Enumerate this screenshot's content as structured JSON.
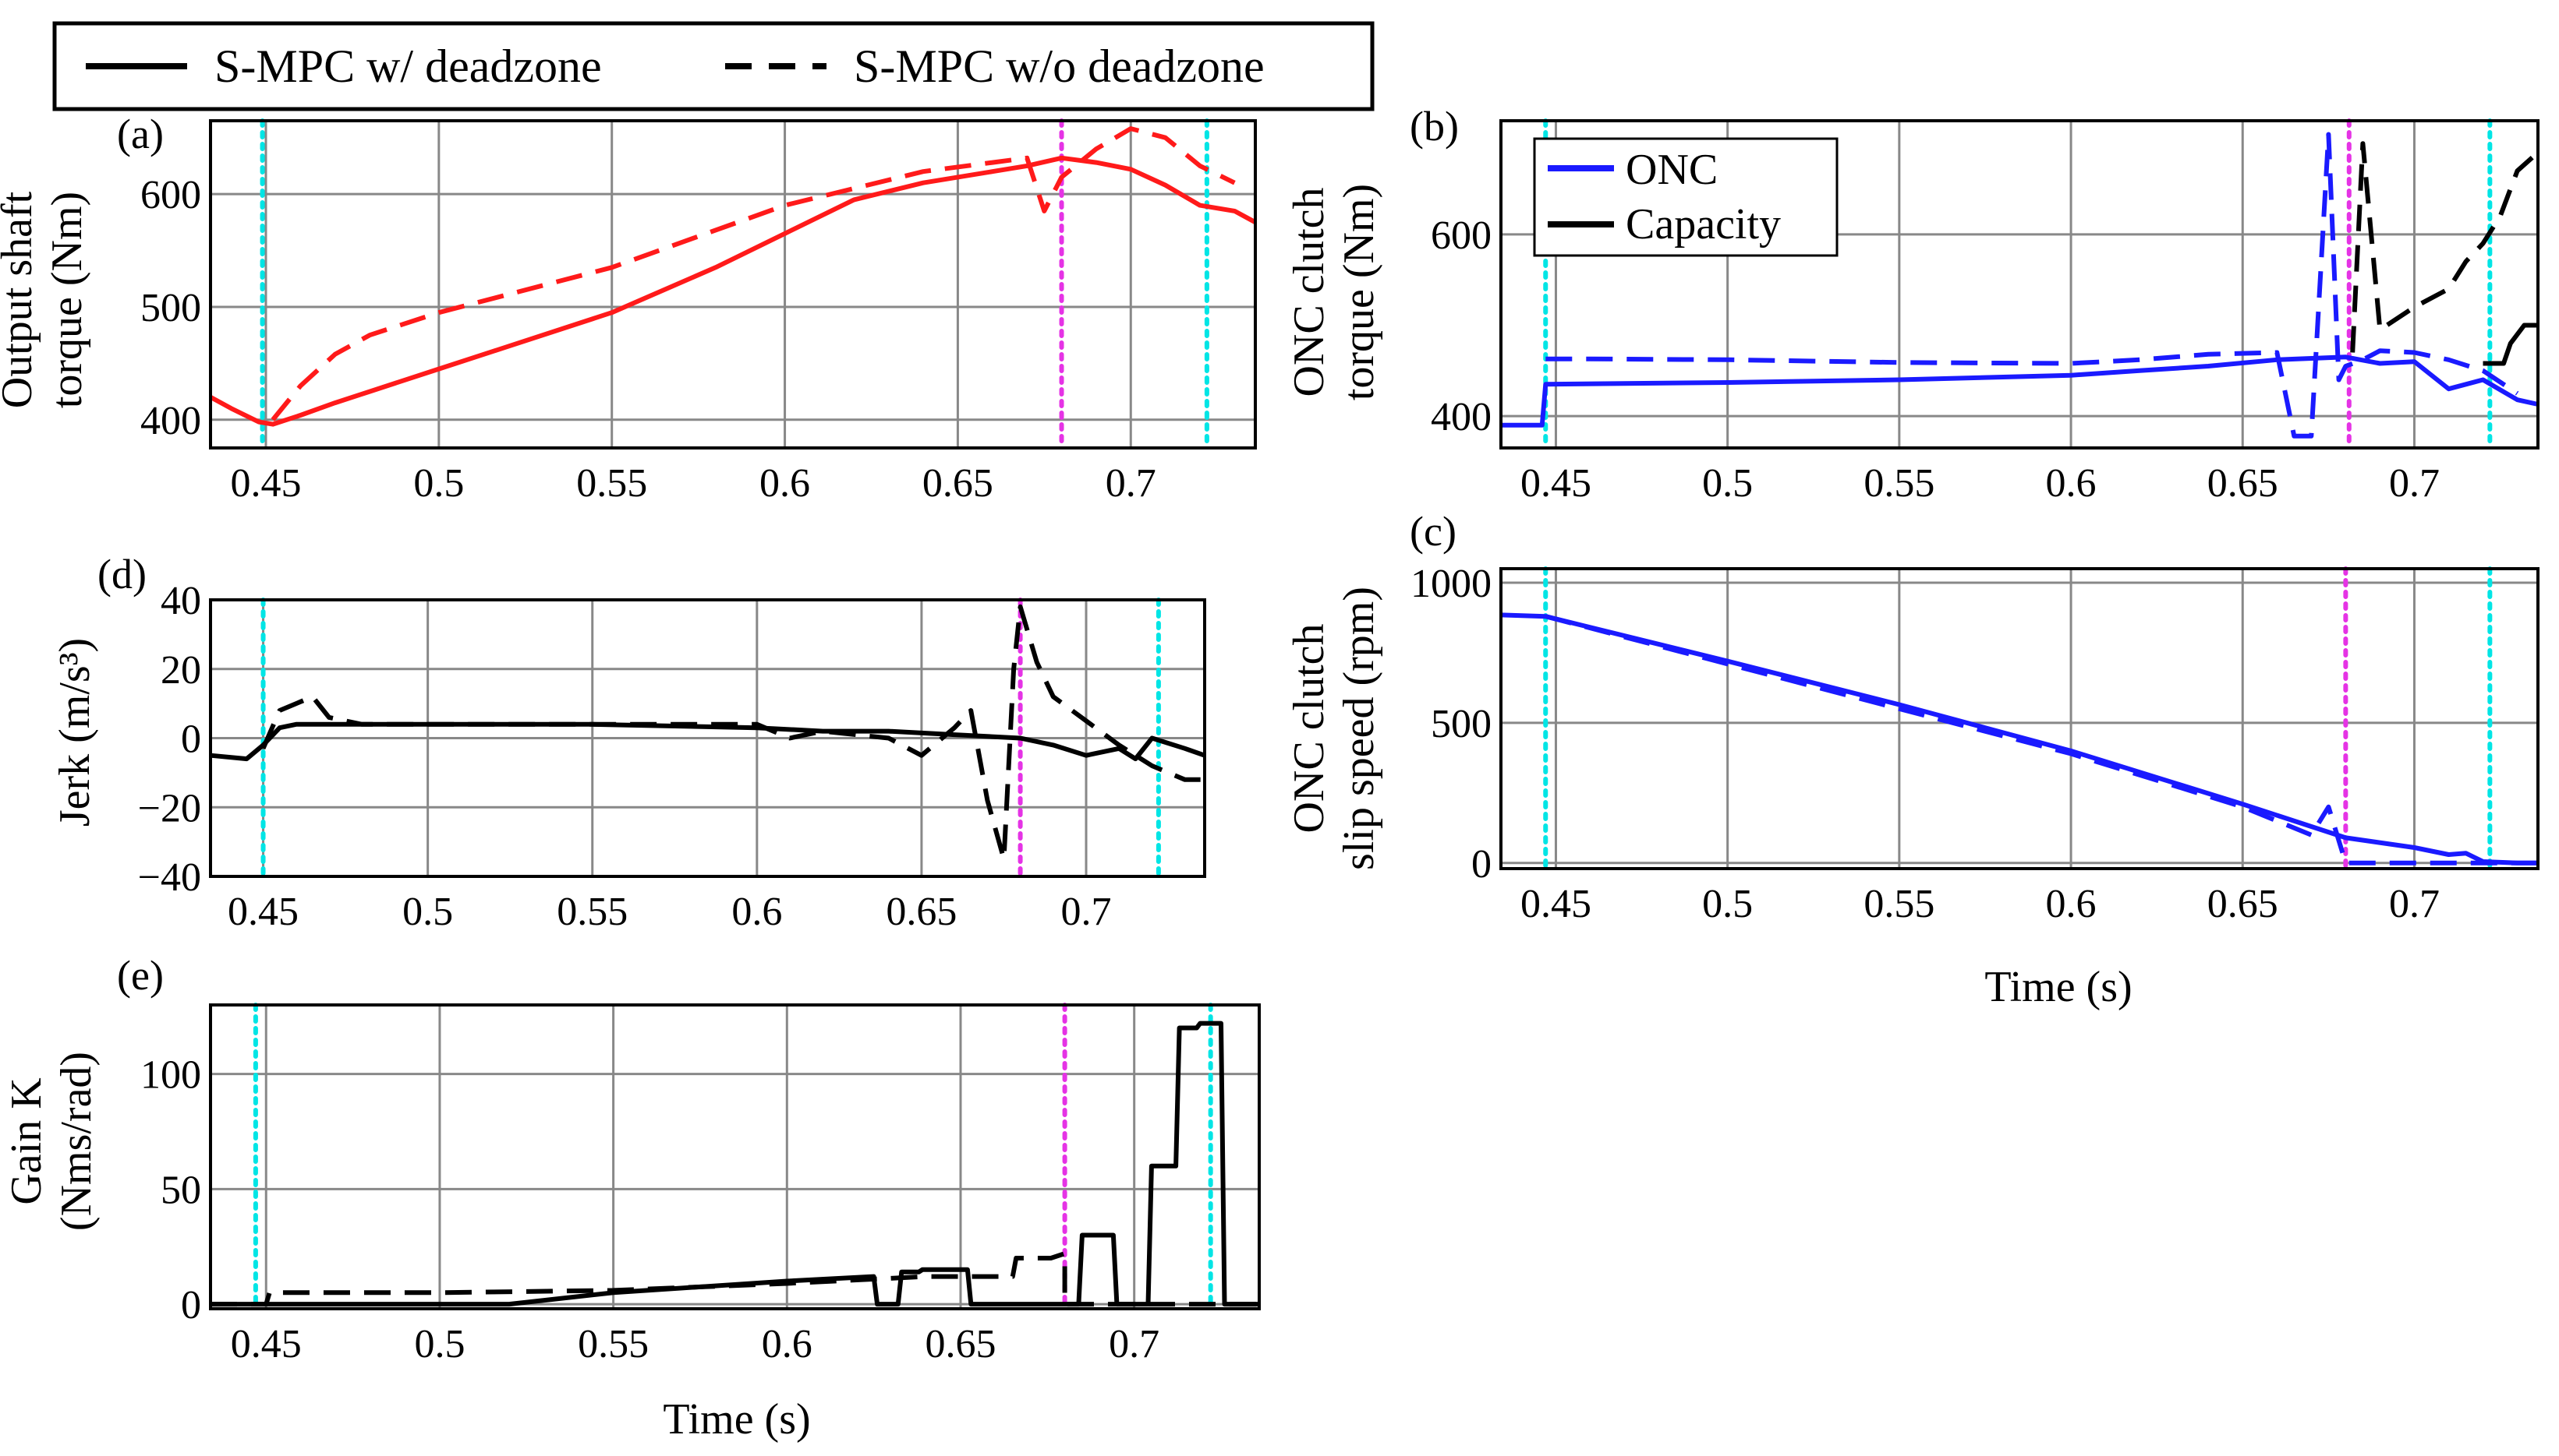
{
  "legend_top": {
    "items": [
      {
        "label": "S-MPC w/ deadzone",
        "style": "solid"
      },
      {
        "label": "S-MPC w/o deadzone",
        "style": "dashed"
      }
    ]
  },
  "colors": {
    "red": "#ff1a1a",
    "blue": "#1a1aff",
    "black": "#000000",
    "cyan": "#00e5e5",
    "magenta": "#e533e5",
    "grid": "#888888"
  },
  "chart_data": [
    {
      "id": "a",
      "panel_label": "(a)",
      "type": "line",
      "ylabel": [
        "Output shaft",
        "torque (Nm)"
      ],
      "xlabel": "",
      "xlim": [
        0.434,
        0.736
      ],
      "ylim": [
        375,
        665
      ],
      "xticks": [
        0.45,
        0.5,
        0.55,
        0.6,
        0.65,
        0.7
      ],
      "xticklabels": [
        "0.45",
        "0.5",
        "0.55",
        "0.6",
        "0.65",
        "0.7"
      ],
      "yticks": [
        400,
        500,
        600
      ],
      "yticklabels": [
        "400",
        "500",
        "600"
      ],
      "vlines": [
        {
          "x": 0.449,
          "color": "cyan"
        },
        {
          "x": 0.68,
          "color": "magenta"
        },
        {
          "x": 0.722,
          "color": "cyan"
        }
      ],
      "series": [
        {
          "style": "solid",
          "color": "red",
          "x": [
            0.434,
            0.44,
            0.448,
            0.452,
            0.46,
            0.47,
            0.48,
            0.5,
            0.52,
            0.55,
            0.58,
            0.6,
            0.62,
            0.64,
            0.66,
            0.67,
            0.68,
            0.69,
            0.7,
            0.71,
            0.72,
            0.73,
            0.736
          ],
          "y": [
            420,
            410,
            398,
            396,
            404,
            415,
            425,
            445,
            465,
            495,
            535,
            565,
            595,
            610,
            620,
            625,
            632,
            628,
            622,
            608,
            590,
            585,
            575
          ]
        },
        {
          "style": "dashed",
          "color": "red",
          "x": [
            0.452,
            0.46,
            0.47,
            0.48,
            0.5,
            0.55,
            0.6,
            0.64,
            0.66,
            0.67,
            0.675,
            0.68,
            0.69,
            0.7,
            0.71,
            0.72,
            0.73
          ],
          "y": [
            400,
            430,
            458,
            475,
            495,
            535,
            590,
            620,
            628,
            632,
            585,
            615,
            640,
            658,
            650,
            625,
            610
          ]
        }
      ]
    },
    {
      "id": "b",
      "panel_label": "(b)",
      "type": "line",
      "ylabel": [
        "ONC clutch",
        "torque (Nm)"
      ],
      "xlabel": "",
      "xlim": [
        0.434,
        0.736
      ],
      "ylim": [
        365,
        725
      ],
      "xticks": [
        0.45,
        0.5,
        0.55,
        0.6,
        0.65,
        0.7
      ],
      "xticklabels": [
        "0.45",
        "0.5",
        "0.55",
        "0.6",
        "0.65",
        "0.7"
      ],
      "yticks": [
        400,
        600
      ],
      "yticklabels": [
        "400",
        "600"
      ],
      "vlines": [
        {
          "x": 0.447,
          "color": "cyan"
        },
        {
          "x": 0.681,
          "color": "magenta"
        },
        {
          "x": 0.722,
          "color": "cyan"
        }
      ],
      "legend": [
        "ONC",
        "Capacity"
      ],
      "series": [
        {
          "name": "ONC",
          "style": "solid",
          "color": "blue",
          "x": [
            0.434,
            0.446,
            0.447,
            0.5,
            0.55,
            0.6,
            0.62,
            0.64,
            0.66,
            0.68,
            0.69,
            0.7,
            0.71,
            0.72,
            0.73,
            0.736
          ],
          "y": [
            390,
            390,
            435,
            437,
            440,
            445,
            450,
            455,
            462,
            465,
            458,
            460,
            430,
            440,
            418,
            413
          ]
        },
        {
          "name": "ONC",
          "style": "dashed",
          "color": "blue",
          "x": [
            0.447,
            0.46,
            0.5,
            0.55,
            0.6,
            0.62,
            0.64,
            0.66,
            0.665,
            0.67,
            0.675,
            0.678,
            0.68,
            0.685,
            0.69,
            0.7,
            0.71,
            0.72,
            0.73
          ],
          "y": [
            463,
            463,
            462,
            459,
            458,
            462,
            468,
            470,
            378,
            378,
            710,
            440,
            455,
            462,
            472,
            470,
            462,
            450,
            425
          ]
        },
        {
          "name": "Capacity",
          "style": "dashed",
          "color": "black",
          "x": [
            0.682,
            0.685,
            0.69,
            0.7,
            0.71,
            0.715,
            0.72,
            0.725,
            0.73,
            0.736
          ],
          "y": [
            470,
            700,
            495,
            520,
            540,
            570,
            590,
            620,
            670,
            690
          ]
        },
        {
          "name": "Capacity",
          "style": "solid",
          "color": "black",
          "x": [
            0.72,
            0.726,
            0.728,
            0.732,
            0.736
          ],
          "y": [
            458,
            458,
            480,
            500,
            500
          ]
        }
      ]
    },
    {
      "id": "d",
      "panel_label": "(d)",
      "type": "line",
      "ylabel": [
        "Jerk (m/s³)"
      ],
      "xlabel": "",
      "xlim": [
        0.434,
        0.736
      ],
      "ylim": [
        -40,
        40
      ],
      "xticks": [
        0.45,
        0.5,
        0.55,
        0.6,
        0.65,
        0.7
      ],
      "xticklabels": [
        "0.45",
        "0.5",
        "0.55",
        "0.6",
        "0.65",
        "0.7"
      ],
      "yticks": [
        -40,
        -20,
        0,
        20,
        40
      ],
      "yticklabels": [
        "−40",
        "−20",
        "0",
        "20",
        "40"
      ],
      "vlines": [
        {
          "x": 0.45,
          "color": "cyan"
        },
        {
          "x": 0.68,
          "color": "magenta"
        },
        {
          "x": 0.722,
          "color": "cyan"
        }
      ],
      "series": [
        {
          "style": "solid",
          "color": "black",
          "x": [
            0.434,
            0.445,
            0.45,
            0.455,
            0.46,
            0.5,
            0.55,
            0.6,
            0.62,
            0.64,
            0.66,
            0.68,
            0.69,
            0.7,
            0.71,
            0.715,
            0.72,
            0.73,
            0.736
          ],
          "y": [
            -5,
            -6,
            -2,
            3,
            4,
            4,
            4,
            3,
            2,
            2,
            1,
            0,
            -2,
            -5,
            -3,
            -6,
            0,
            -3,
            -5
          ]
        },
        {
          "style": "dashed",
          "color": "black",
          "x": [
            0.45,
            0.455,
            0.465,
            0.47,
            0.48,
            0.5,
            0.55,
            0.6,
            0.61,
            0.62,
            0.64,
            0.65,
            0.66,
            0.665,
            0.67,
            0.675,
            0.678,
            0.68,
            0.685,
            0.69,
            0.7,
            0.71,
            0.72,
            0.73,
            0.736
          ],
          "y": [
            -3,
            8,
            12,
            6,
            4,
            4,
            4,
            4,
            0,
            2,
            0,
            -5,
            3,
            8,
            -18,
            -35,
            20,
            38,
            22,
            12,
            5,
            -2,
            -8,
            -12,
            -12
          ]
        }
      ]
    },
    {
      "id": "c",
      "panel_label": "(c)",
      "type": "line",
      "ylabel": [
        "ONC clutch",
        "slip speed (rpm)"
      ],
      "xlabel": "Time (s)",
      "xlim": [
        0.434,
        0.736
      ],
      "ylim": [
        -20,
        1050
      ],
      "xticks": [
        0.45,
        0.5,
        0.55,
        0.6,
        0.65,
        0.7
      ],
      "xticklabels": [
        "0.45",
        "0.5",
        "0.55",
        "0.6",
        "0.65",
        "0.7"
      ],
      "yticks": [
        0,
        500,
        1000
      ],
      "yticklabels": [
        "0",
        "500",
        "1000"
      ],
      "vlines": [
        {
          "x": 0.447,
          "color": "cyan"
        },
        {
          "x": 0.68,
          "color": "magenta"
        },
        {
          "x": 0.722,
          "color": "cyan"
        }
      ],
      "series": [
        {
          "style": "solid",
          "color": "blue",
          "x": [
            0.434,
            0.447,
            0.5,
            0.55,
            0.6,
            0.65,
            0.68,
            0.7,
            0.71,
            0.715,
            0.72,
            0.73,
            0.736
          ],
          "y": [
            885,
            880,
            720,
            565,
            400,
            210,
            90,
            55,
            30,
            35,
            5,
            0,
            0
          ]
        },
        {
          "style": "dashed",
          "color": "blue",
          "x": [
            0.447,
            0.5,
            0.55,
            0.6,
            0.65,
            0.67,
            0.675,
            0.68,
            0.7,
            0.736
          ],
          "y": [
            880,
            710,
            550,
            390,
            200,
            100,
            200,
            0,
            0,
            0
          ]
        }
      ]
    },
    {
      "id": "e",
      "panel_label": "(e)",
      "type": "line",
      "ylabel": [
        "Gain K",
        "(Nms/rad)"
      ],
      "xlabel": "Time (s)",
      "xlim": [
        0.434,
        0.736
      ],
      "ylim": [
        -2,
        130
      ],
      "xticks": [
        0.45,
        0.5,
        0.55,
        0.6,
        0.65,
        0.7
      ],
      "xticklabels": [
        "0.45",
        "0.5",
        "0.55",
        "0.6",
        "0.65",
        "0.7"
      ],
      "yticks": [
        0,
        50,
        100
      ],
      "yticklabels": [
        "0",
        "50",
        "100"
      ],
      "vlines": [
        {
          "x": 0.447,
          "color": "cyan"
        },
        {
          "x": 0.68,
          "color": "magenta"
        },
        {
          "x": 0.722,
          "color": "cyan"
        }
      ],
      "series": [
        {
          "style": "solid",
          "color": "black",
          "x": [
            0.434,
            0.52,
            0.55,
            0.6,
            0.625,
            0.626,
            0.632,
            0.633,
            0.638,
            0.639,
            0.652,
            0.653,
            0.684,
            0.685,
            0.694,
            0.695,
            0.704,
            0.705,
            0.712,
            0.713,
            0.718,
            0.719,
            0.725,
            0.726,
            0.736
          ],
          "y": [
            0,
            0,
            5,
            10,
            12,
            0,
            0,
            14,
            14,
            15,
            15,
            0,
            0,
            30,
            30,
            0,
            0,
            60,
            60,
            120,
            120,
            122,
            122,
            0,
            0
          ]
        },
        {
          "style": "dashed",
          "color": "black",
          "x": [
            0.434,
            0.45,
            0.451,
            0.5,
            0.55,
            0.6,
            0.64,
            0.665,
            0.666,
            0.676,
            0.68,
            0.68,
            0.736
          ],
          "y": [
            0,
            0,
            5,
            5,
            6,
            9,
            12,
            12,
            20,
            20,
            22,
            0,
            0
          ]
        }
      ]
    }
  ]
}
